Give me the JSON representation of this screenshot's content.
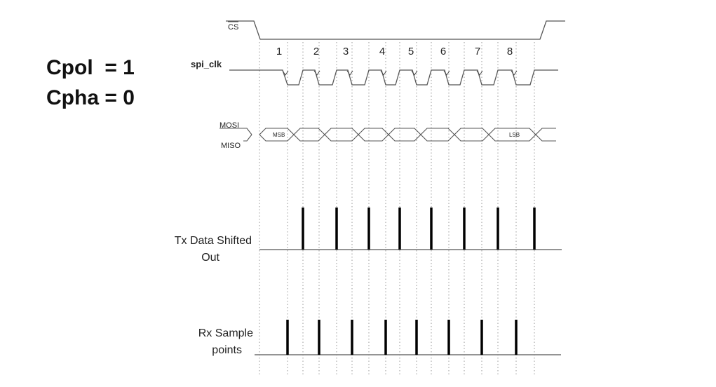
{
  "mode": {
    "cpol": "Cpol  = 1",
    "cpha": "Cpha = 0"
  },
  "signals": {
    "cs": "CS",
    "spi_clk": "spi_clk",
    "mosi": "MOSI",
    "miso": "MISO",
    "msb": "MSB",
    "lsb": "LSB",
    "tx_line1": "Tx Data Shifted",
    "tx_line2": "Out",
    "rx_line1": "Rx Sample",
    "rx_line2": "points"
  },
  "clock_numbers": [
    "1",
    "2",
    "3",
    "4",
    "5",
    "6",
    "7",
    "8"
  ],
  "colors": {
    "line": "#555555",
    "pulse": "#000000",
    "guide": "#999999",
    "text": "#222222"
  }
}
